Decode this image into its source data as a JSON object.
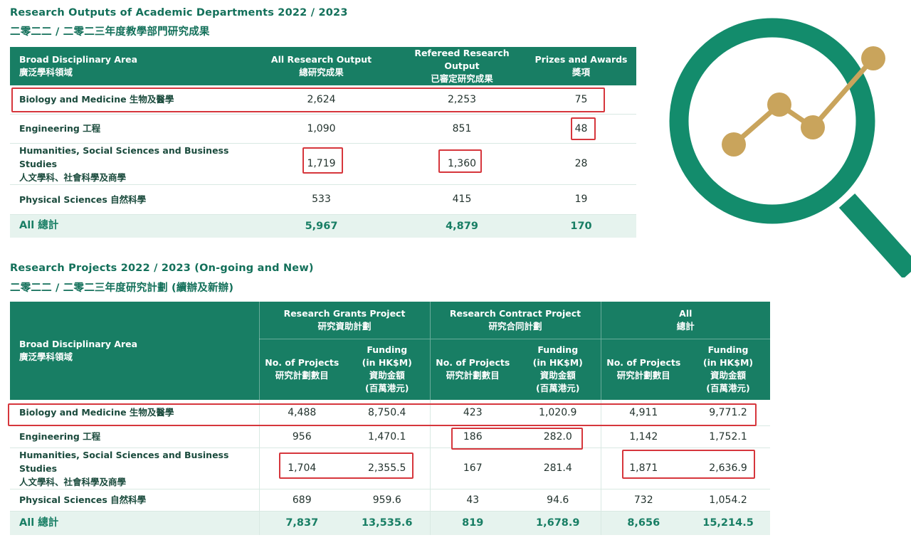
{
  "outputs": {
    "title_en": "Research Outputs of Academic Departments 2022 / 2023",
    "title_zh": "二零二二 / 二零二三年度教學部門研究成果",
    "headers": {
      "area": [
        "Broad Disciplinary Area",
        "廣泛學科領域"
      ],
      "all": [
        "All Research Output",
        "總研究成果"
      ],
      "refereed": [
        "Refereed Research Output",
        "已審定研究成果"
      ],
      "prizes": [
        "Prizes and Awards",
        "獎項"
      ]
    },
    "rows": [
      {
        "label": [
          "Biology and Medicine 生物及醫學"
        ],
        "all": "2,624",
        "refereed": "2,253",
        "prizes": "75"
      },
      {
        "label": [
          "Engineering 工程"
        ],
        "all": "1,090",
        "refereed": "851",
        "prizes": "48"
      },
      {
        "label": [
          "Humanities, Social Sciences and Business Studies",
          "人文學科、社會科學及商學"
        ],
        "all": "1,719",
        "refereed": "1,360",
        "prizes": "28"
      },
      {
        "label": [
          "Physical Sciences 自然科學"
        ],
        "all": "533",
        "refereed": "415",
        "prizes": "19"
      }
    ],
    "total": {
      "label": "All 總計",
      "all": "5,967",
      "refereed": "4,879",
      "prizes": "170"
    }
  },
  "projects": {
    "title_en": "Research Projects 2022 / 2023 (On-going and New)",
    "title_zh": "二零二二 / 二零二三年度研究計劃 (續辦及新辦)",
    "headers": {
      "area": [
        "Broad Disciplinary Area",
        "廣泛學科領域"
      ],
      "grants": [
        "Research Grants Project",
        "研究資助計劃"
      ],
      "contract": [
        "Research Contract Project",
        "研究合同計劃"
      ],
      "all": [
        "All",
        "總計"
      ],
      "num_projects": [
        "No. of Projects",
        "研究計劃數目"
      ],
      "funding": [
        "Funding",
        "(in HK$M)",
        "資助金額",
        "(百萬港元)"
      ]
    },
    "rows": [
      {
        "label": [
          "Biology and Medicine 生物及醫學"
        ],
        "g_n": "4,488",
        "g_f": "8,750.4",
        "c_n": "423",
        "c_f": "1,020.9",
        "a_n": "4,911",
        "a_f": "9,771.2"
      },
      {
        "label": [
          "Engineering 工程"
        ],
        "g_n": "956",
        "g_f": "1,470.1",
        "c_n": "186",
        "c_f": "282.0",
        "a_n": "1,142",
        "a_f": "1,752.1"
      },
      {
        "label": [
          "Humanities, Social Sciences and Business Studies",
          "人文學科、社會科學及商學"
        ],
        "g_n": "1,704",
        "g_f": "2,355.5",
        "c_n": "167",
        "c_f": "281.4",
        "a_n": "1,871",
        "a_f": "2,636.9"
      },
      {
        "label": [
          "Physical Sciences 自然科學"
        ],
        "g_n": "689",
        "g_f": "959.6",
        "c_n": "43",
        "c_f": "94.6",
        "a_n": "732",
        "a_f": "1,054.2"
      }
    ],
    "total": {
      "label": "All 總計",
      "g_n": "7,837",
      "g_f": "13,535.6",
      "c_n": "819",
      "c_f": "1,678.9",
      "a_n": "8,656",
      "a_f": "15,214.5"
    }
  },
  "colors": {
    "header_green": "#187e64",
    "total_bg": "#e6f3ee",
    "highlight_red": "#d6363c",
    "logo_gold": "#c9a45c",
    "logo_green": "#138c6c"
  },
  "icons": {
    "logo": "magnifier-chart-icon"
  }
}
